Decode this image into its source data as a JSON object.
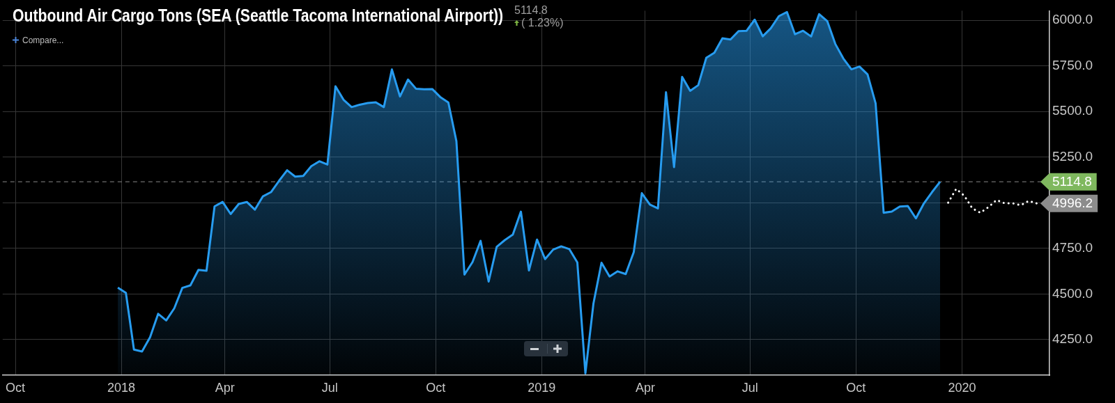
{
  "chart_data": {
    "type": "area",
    "title": "Outbound Air Cargo Tons (SEA (Seattle Tacoma International Airport))",
    "annotations": [
      "Compare...",
      "5114.8",
      "( 1.23%)"
    ],
    "x": [
      "2017-12-29",
      "2018-01-05",
      "2018-01-12",
      "2018-01-19",
      "2018-01-26",
      "2018-02-02",
      "2018-02-09",
      "2018-02-16",
      "2018-02-23",
      "2018-03-02",
      "2018-03-09",
      "2018-03-16",
      "2018-03-23",
      "2018-03-30",
      "2018-04-06",
      "2018-04-13",
      "2018-04-20",
      "2018-04-27",
      "2018-05-04",
      "2018-05-11",
      "2018-05-18",
      "2018-05-25",
      "2018-06-01",
      "2018-06-08",
      "2018-06-15",
      "2018-06-22",
      "2018-06-29",
      "2018-07-06",
      "2018-07-13",
      "2018-07-20",
      "2018-07-27",
      "2018-08-03",
      "2018-08-10",
      "2018-08-17",
      "2018-08-24",
      "2018-08-31",
      "2018-09-07",
      "2018-09-14",
      "2018-09-21",
      "2018-09-28",
      "2018-10-05",
      "2018-10-12",
      "2018-10-19",
      "2018-10-26",
      "2018-11-02",
      "2018-11-09",
      "2018-11-16",
      "2018-11-23",
      "2018-11-30",
      "2018-12-07",
      "2018-12-14",
      "2018-12-21",
      "2018-12-28",
      "2019-01-04",
      "2019-01-11",
      "2019-01-18",
      "2019-01-25",
      "2019-02-01",
      "2019-02-08",
      "2019-02-15",
      "2019-02-22",
      "2019-03-01",
      "2019-03-08",
      "2019-03-15",
      "2019-03-22",
      "2019-03-29",
      "2019-04-05",
      "2019-04-12",
      "2019-04-19",
      "2019-04-26",
      "2019-05-03",
      "2019-05-10",
      "2019-05-17",
      "2019-05-24",
      "2019-05-31",
      "2019-06-07",
      "2019-06-14",
      "2019-06-21",
      "2019-06-28",
      "2019-07-05",
      "2019-07-12",
      "2019-07-19",
      "2019-07-26",
      "2019-08-02",
      "2019-08-09",
      "2019-08-16",
      "2019-08-23",
      "2019-08-30",
      "2019-09-06",
      "2019-09-13",
      "2019-09-20",
      "2019-09-27",
      "2019-10-04",
      "2019-10-11",
      "2019-10-18",
      "2019-10-25",
      "2019-11-01",
      "2019-11-08",
      "2019-11-15",
      "2019-11-22",
      "2019-11-29",
      "2019-12-06",
      "2019-12-13"
    ],
    "series": [
      {
        "color": "#279cf0",
        "values": [
          4535,
          4506,
          4195,
          4185,
          4263,
          4391,
          4355,
          4421,
          4533,
          4547,
          4632,
          4627,
          4980,
          5004,
          4938,
          4993,
          5004,
          4962,
          5035,
          5058,
          5120,
          5178,
          5143,
          5147,
          5200,
          5227,
          5209,
          5638,
          5564,
          5524,
          5537,
          5546,
          5550,
          5524,
          5730,
          5582,
          5675,
          5624,
          5622,
          5623,
          5579,
          5549,
          5337,
          4606,
          4675,
          4791,
          4568,
          4758,
          4795,
          4825,
          4951,
          4629,
          4798,
          4691,
          4743,
          4761,
          4746,
          4673,
          4065,
          4448,
          4671,
          4596,
          4624,
          4609,
          4729,
          5052,
          4990,
          4969,
          5605,
          5195,
          5689,
          5613,
          5644,
          5794,
          5822,
          5901,
          5894,
          5940,
          5942,
          6003,
          5912,
          5956,
          6022,
          6045,
          5923,
          5942,
          5911,
          6033,
          5995,
          5870,
          5790,
          5731,
          5746,
          5703,
          5545,
          4945,
          4951,
          4979,
          4982,
          4914,
          4997,
          5058,
          5114.8
        ]
      },
      {
        "type": "line",
        "line_style": "dotted",
        "color": "#ffffff",
        "x": [
          "2019-12-20",
          "2019-12-27",
          "2020-01-03",
          "2020-01-10",
          "2020-01-17",
          "2020-01-24",
          "2020-01-31",
          "2020-02-07",
          "2020-02-14",
          "2020-02-21",
          "2020-02-28",
          "2020-03-06"
        ],
        "values": [
          5000,
          5076,
          5038,
          4969,
          4945,
          4976,
          5015,
          4997,
          4997,
          4986,
          5010,
          4996.2
        ],
        "value_labels": [
          null,
          null,
          null,
          null,
          null,
          null,
          null,
          null,
          null,
          null,
          null,
          "4996.2"
        ]
      }
    ],
    "xlim": [
      "2017-09-20",
      "2020-03-17"
    ],
    "xticks": [
      {
        "value": "2017-10-01",
        "label": "Oct"
      },
      {
        "value": "2018-01-01",
        "label": "2018"
      },
      {
        "value": "2018-04-01",
        "label": "Apr"
      },
      {
        "value": "2018-07-01",
        "label": "Jul"
      },
      {
        "value": "2018-10-01",
        "label": "Oct"
      },
      {
        "value": "2019-01-01",
        "label": "2019"
      },
      {
        "value": "2019-04-01",
        "label": "Apr"
      },
      {
        "value": "2019-07-01",
        "label": "Jul"
      },
      {
        "value": "2019-10-01",
        "label": "Oct"
      },
      {
        "value": "2020-01-01",
        "label": "2020"
      }
    ],
    "ylim": [
      4055,
      6052
    ],
    "yticks": [
      {
        "value": 4250,
        "label": "4250.0"
      },
      {
        "value": 4500,
        "label": "4500.0"
      },
      {
        "value": 4750,
        "label": "4750.0"
      },
      {
        "value": 5000,
        "label": null
      },
      {
        "value": 5250,
        "label": "5250.0"
      },
      {
        "value": 5500,
        "label": "5500.0"
      },
      {
        "value": 5750,
        "label": "5750.0"
      },
      {
        "value": 6000,
        "label": "6000.0"
      }
    ],
    "ref_lines": [
      {
        "axis": "y",
        "value": 5114.8,
        "label": "5114.8",
        "color": "#8a8a8a",
        "line_style": "dashed"
      }
    ],
    "grid": true,
    "legend": false,
    "marker": "none"
  }
}
